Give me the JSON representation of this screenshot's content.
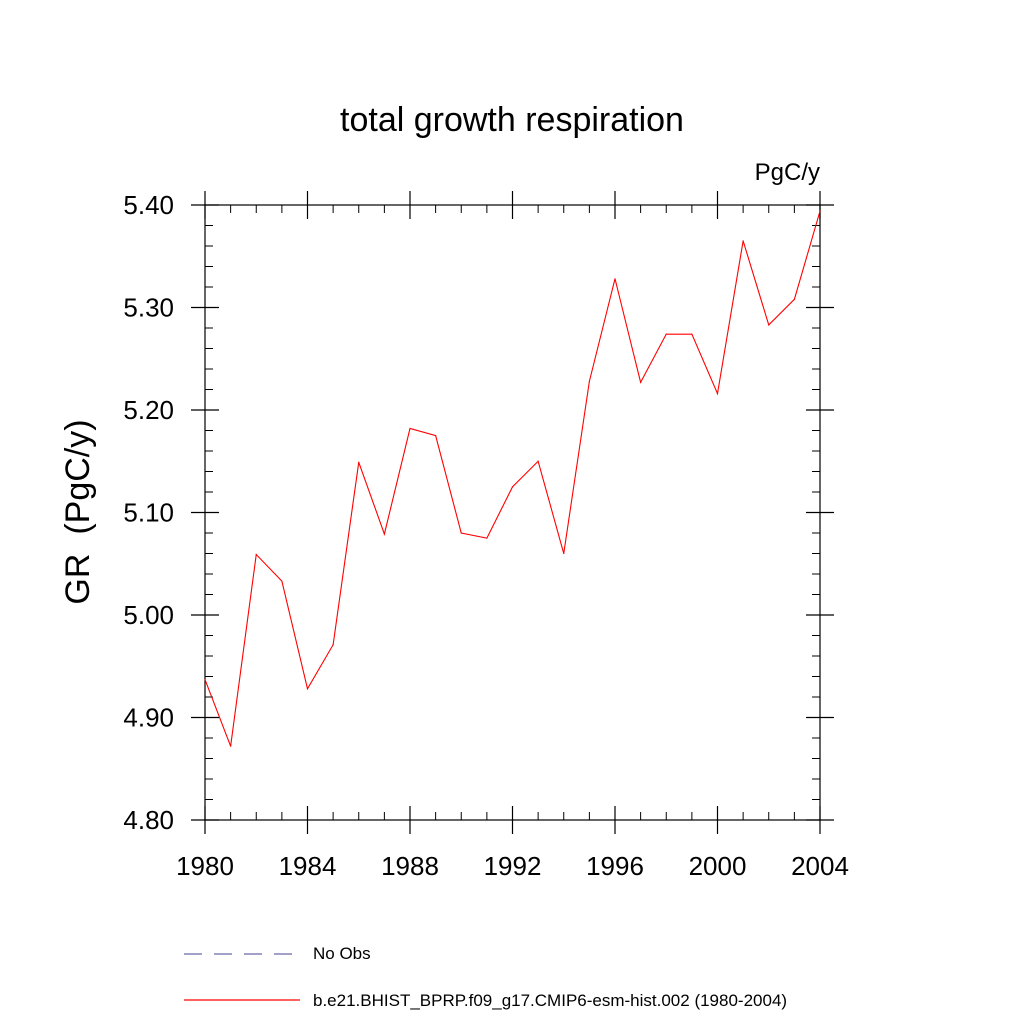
{
  "chart_data": {
    "type": "line",
    "title": "total growth respiration",
    "units_label": "PgC/y",
    "ylabel": "GR  (PgC/y)",
    "xlabel": "",
    "xlim": [
      1980,
      2004
    ],
    "ylim": [
      4.8,
      5.4
    ],
    "x_ticks": [
      1980,
      1984,
      1988,
      1992,
      1996,
      2000,
      2004
    ],
    "x_tick_labels": [
      "1980",
      "1984",
      "1988",
      "1992",
      "1996",
      "2000",
      "2004"
    ],
    "y_ticks": [
      4.8,
      4.9,
      5.0,
      5.1,
      5.2,
      5.3,
      5.4
    ],
    "y_tick_labels": [
      "4.80",
      "4.90",
      "5.00",
      "5.10",
      "5.20",
      "5.30",
      "5.40"
    ],
    "grid": false,
    "series": [
      {
        "name": "b.e21.BHIST_BPRP.f09_g17.CMIP6-esm-hist.002 (1980-2004)",
        "color": "#ff0000",
        "style": "solid",
        "x": [
          1980,
          1981,
          1982,
          1983,
          1984,
          1985,
          1986,
          1987,
          1988,
          1989,
          1990,
          1991,
          1992,
          1993,
          1994,
          1995,
          1996,
          1997,
          1998,
          1999,
          2000,
          2001,
          2002,
          2003,
          2004
        ],
        "values": [
          4.937,
          4.872,
          5.059,
          5.033,
          4.928,
          4.971,
          5.149,
          5.079,
          5.182,
          5.175,
          5.08,
          5.075,
          5.125,
          5.15,
          5.06,
          5.228,
          5.328,
          5.227,
          5.274,
          5.274,
          5.216,
          5.365,
          5.283,
          5.308,
          5.394
        ]
      }
    ],
    "legend": [
      {
        "label": "No Obs",
        "color": "#6a6aa8",
        "style": "dashed"
      },
      {
        "label": "b.e21.BHIST_BPRP.f09_g17.CMIP6-esm-hist.002 (1980-2004)",
        "color": "#ff0000",
        "style": "solid"
      }
    ],
    "legend_position": "bottom"
  }
}
